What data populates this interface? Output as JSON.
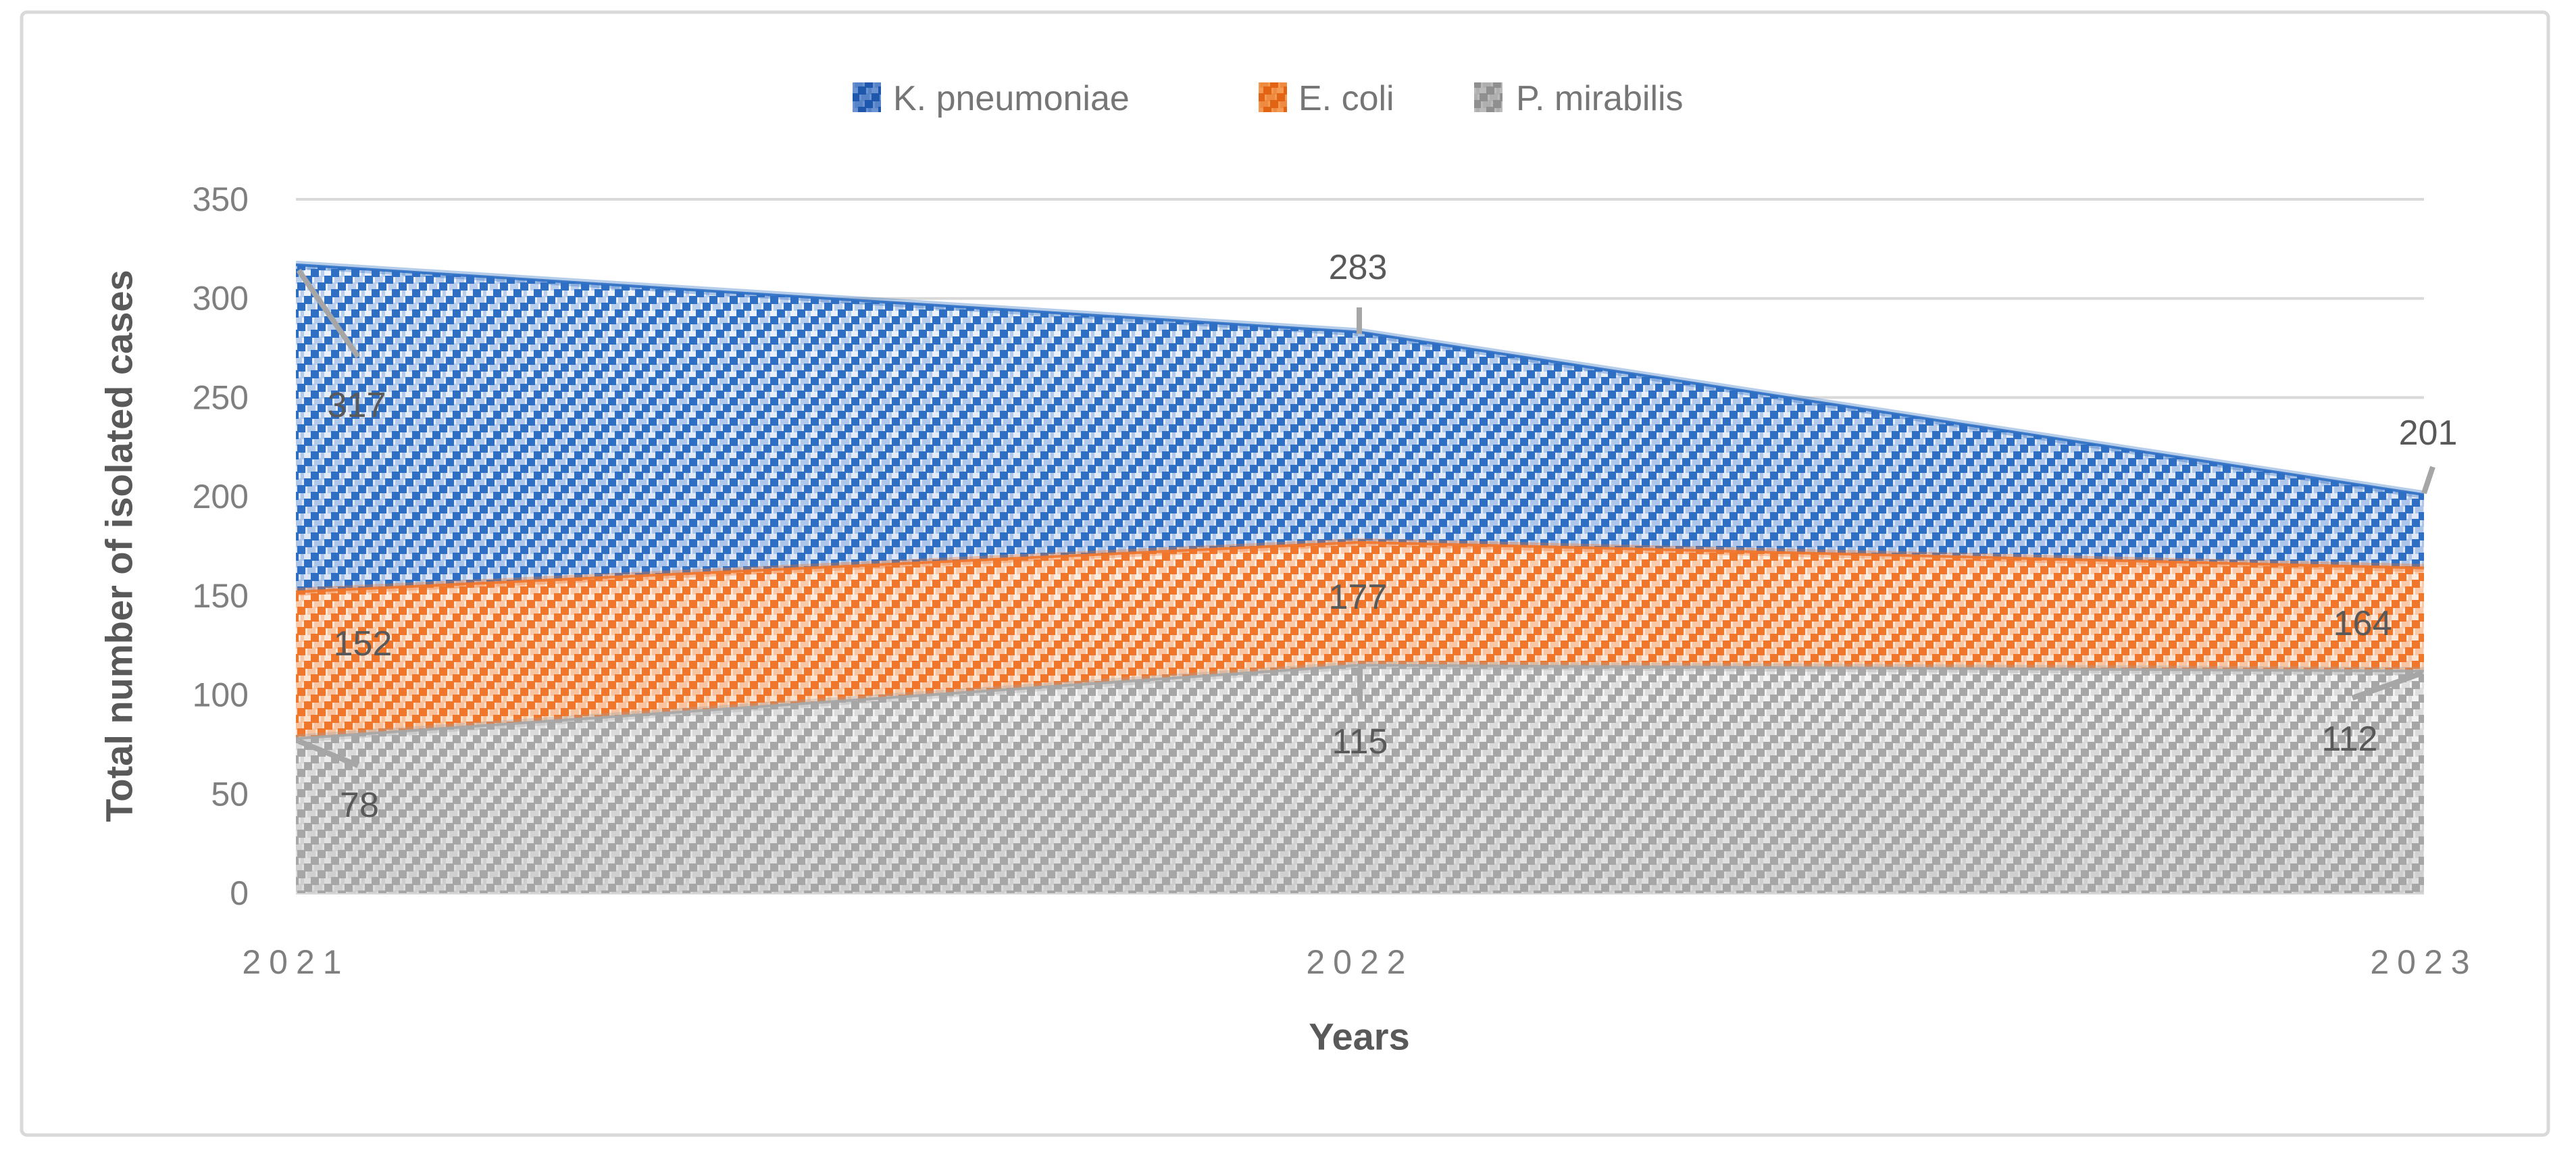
{
  "figure": {
    "background": "#FFFFFF",
    "border_color": "#D9D9D9"
  },
  "chart_data": {
    "type": "area",
    "variant": "overlapping patterned areas (not stacked)",
    "title": "",
    "categories": [
      "2021",
      "2022",
      "2023"
    ],
    "series": [
      {
        "name": "K. pneumoniae",
        "values": [
          317,
          283,
          201
        ],
        "color": "#2E6FC4",
        "area_bg_light": "#EFF4FC",
        "area_bg_dark": "#C5D5EF",
        "legend_bg": "#6B93D1",
        "legend_fg": "#1E57AB"
      },
      {
        "name": "E. coli",
        "values": [
          152,
          177,
          164
        ],
        "color": "#F0762B",
        "area_bg_light": "#FDEFE4",
        "area_bg_dark": "#F8CFAE",
        "legend_bg": "#F49A52",
        "legend_fg": "#E06413"
      },
      {
        "name": "P. mirabilis",
        "values": [
          78,
          115,
          112
        ],
        "color": "#A6A6A6",
        "area_bg_light": "#F6F6F6",
        "area_bg_dark": "#DCDCDC",
        "legend_bg": "#BBBBBB",
        "legend_fg": "#8F8F8F"
      }
    ],
    "xlabel": "Years",
    "ylabel": "Total number of isolated cases",
    "ylim": [
      0,
      350
    ],
    "ytick_step": 50,
    "yticks": [
      0,
      50,
      100,
      150,
      200,
      250,
      300,
      350
    ],
    "grid": true,
    "legend_position": "top",
    "data_labels": true,
    "colors": {
      "gridline": "#D9D9D9",
      "tick_label": "#7F7F7F",
      "data_label": "#595959",
      "axis_title": "#595959",
      "legend_text": "#767676",
      "leader_line": "#A6A6A6"
    }
  }
}
